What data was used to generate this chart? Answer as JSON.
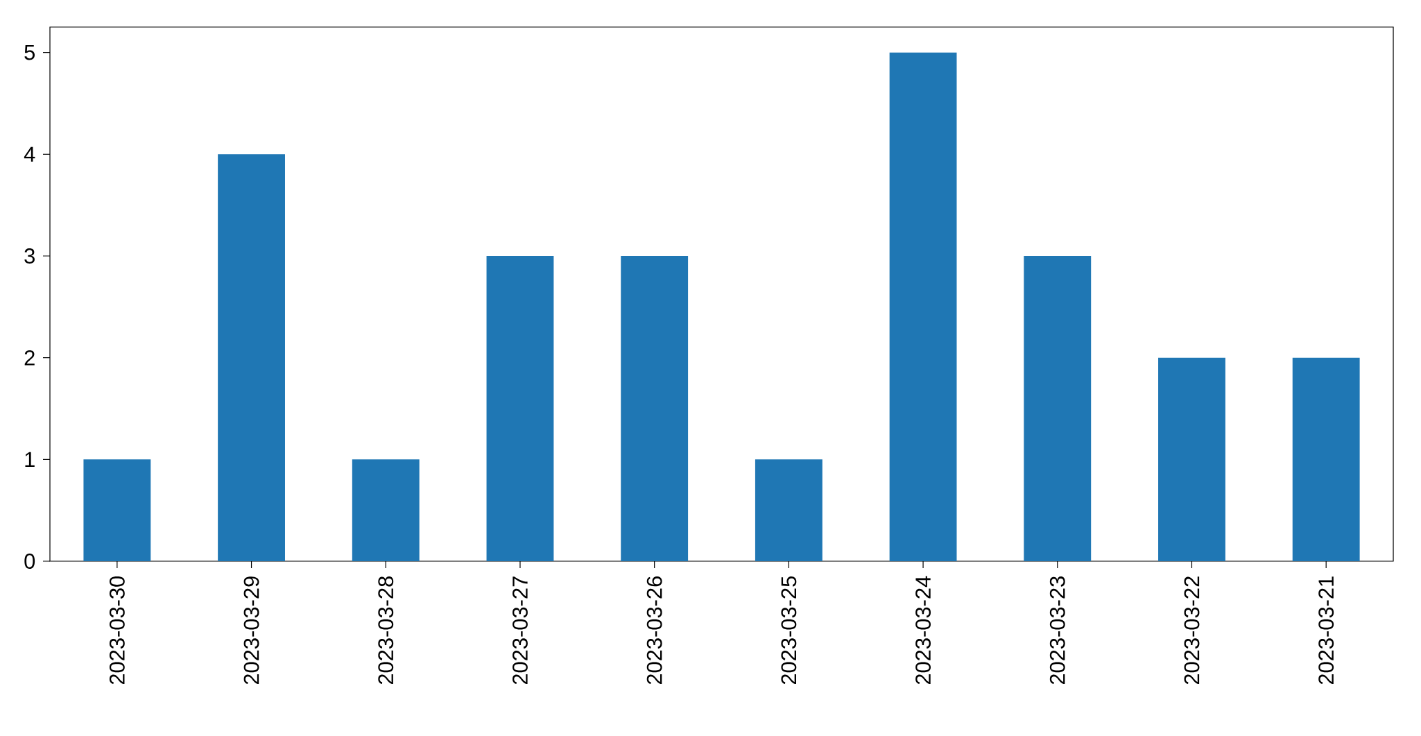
{
  "chart_data": {
    "type": "bar",
    "categories": [
      "2023-03-30",
      "2023-03-29",
      "2023-03-28",
      "2023-03-27",
      "2023-03-26",
      "2023-03-25",
      "2023-03-24",
      "2023-03-23",
      "2023-03-22",
      "2023-03-21"
    ],
    "values": [
      1,
      4,
      1,
      3,
      3,
      1,
      5,
      3,
      2,
      2
    ],
    "color": "#1f77b4",
    "ylim": [
      0,
      5.25
    ],
    "yticks": [
      0,
      1,
      2,
      3,
      4,
      5
    ]
  }
}
